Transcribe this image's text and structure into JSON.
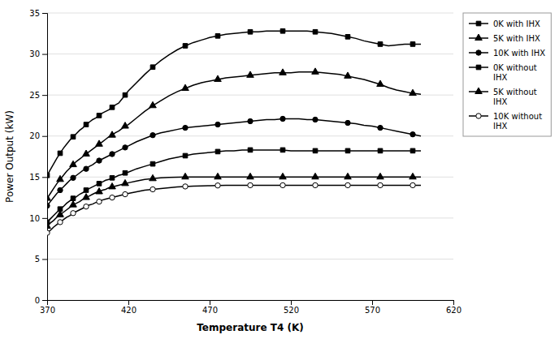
{
  "chart_data": {
    "type": "line",
    "xlabel": "Temperature T4 (K)",
    "ylabel": "Power Output (kW)",
    "xlim": [
      370,
      620
    ],
    "ylim": [
      0,
      35
    ],
    "xticks": [
      370,
      420,
      470,
      520,
      570,
      620
    ],
    "yticks": [
      0,
      5,
      10,
      15,
      20,
      25,
      30,
      35
    ],
    "grid": "y",
    "legend": "right",
    "x": [
      370,
      372,
      374,
      376,
      378,
      380,
      382,
      384,
      386,
      388,
      390,
      392,
      394,
      396,
      398,
      400,
      402,
      404,
      406,
      408,
      410,
      412,
      414,
      416,
      418,
      420,
      425,
      430,
      435,
      440,
      445,
      450,
      455,
      460,
      465,
      470,
      475,
      480,
      485,
      490,
      495,
      500,
      505,
      510,
      515,
      520,
      525,
      530,
      535,
      540,
      545,
      550,
      555,
      560,
      565,
      570,
      575,
      580,
      585,
      590,
      595,
      600
    ],
    "series": [
      {
        "name": "0K with IHX",
        "marker": "square",
        "color": "#000000",
        "values": [
          15.2,
          15.9,
          16.6,
          17.3,
          17.9,
          18.5,
          19.0,
          19.5,
          19.9,
          20.3,
          20.7,
          21.0,
          21.4,
          21.7,
          22.0,
          22.2,
          22.5,
          22.8,
          23.0,
          23.2,
          23.5,
          23.8,
          24.0,
          24.5,
          25.0,
          25.5,
          26.5,
          27.5,
          28.4,
          29.2,
          29.9,
          30.5,
          31.0,
          31.4,
          31.7,
          32.0,
          32.2,
          32.4,
          32.5,
          32.6,
          32.7,
          32.7,
          32.8,
          32.8,
          32.8,
          32.8,
          32.8,
          32.8,
          32.7,
          32.6,
          32.5,
          32.3,
          32.1,
          31.9,
          31.6,
          31.4,
          31.2,
          31.0,
          31.1,
          31.2,
          31.2,
          31.2
        ]
      },
      {
        "name": "5K with IHX",
        "marker": "triangle",
        "color": "#000000",
        "values": [
          12.4,
          13.0,
          13.6,
          14.2,
          14.7,
          15.2,
          15.7,
          16.1,
          16.5,
          16.9,
          17.2,
          17.5,
          17.8,
          18.1,
          18.4,
          18.7,
          19.0,
          19.3,
          19.6,
          19.9,
          20.1,
          20.4,
          20.6,
          20.9,
          21.2,
          21.4,
          22.2,
          23.0,
          23.7,
          24.3,
          24.9,
          25.4,
          25.8,
          26.2,
          26.5,
          26.7,
          26.9,
          27.1,
          27.2,
          27.3,
          27.4,
          27.5,
          27.6,
          27.7,
          27.7,
          27.7,
          27.8,
          27.8,
          27.8,
          27.7,
          27.6,
          27.5,
          27.3,
          27.1,
          26.9,
          26.6,
          26.3,
          25.9,
          25.6,
          25.4,
          25.2,
          25.1
        ]
      },
      {
        "name": "10K with IHX",
        "marker": "circle",
        "color": "#000000",
        "values": [
          11.5,
          12.0,
          12.5,
          13.0,
          13.4,
          13.8,
          14.2,
          14.6,
          14.9,
          15.2,
          15.5,
          15.8,
          16.0,
          16.3,
          16.5,
          16.8,
          17.0,
          17.2,
          17.4,
          17.6,
          17.8,
          18.0,
          18.2,
          18.4,
          18.6,
          18.8,
          19.3,
          19.7,
          20.1,
          20.4,
          20.6,
          20.8,
          21.0,
          21.1,
          21.2,
          21.3,
          21.4,
          21.5,
          21.6,
          21.7,
          21.8,
          21.9,
          22.0,
          22.0,
          22.1,
          22.1,
          22.1,
          22.0,
          22.0,
          21.9,
          21.8,
          21.7,
          21.6,
          21.5,
          21.3,
          21.2,
          21.0,
          20.8,
          20.6,
          20.4,
          20.2,
          20.0
        ]
      },
      {
        "name": "0K without\nIHX",
        "marker": "square",
        "color": "#000000",
        "values": [
          9.5,
          9.9,
          10.3,
          10.7,
          11.1,
          11.4,
          11.8,
          12.1,
          12.4,
          12.6,
          12.9,
          13.1,
          13.4,
          13.6,
          13.8,
          14.0,
          14.2,
          14.4,
          14.6,
          14.7,
          14.9,
          15.0,
          15.2,
          15.3,
          15.5,
          15.6,
          16.0,
          16.3,
          16.6,
          16.9,
          17.2,
          17.4,
          17.6,
          17.8,
          17.9,
          18.0,
          18.1,
          18.2,
          18.2,
          18.3,
          18.3,
          18.3,
          18.3,
          18.3,
          18.3,
          18.2,
          18.2,
          18.2,
          18.2,
          18.2,
          18.2,
          18.2,
          18.2,
          18.2,
          18.2,
          18.2,
          18.2,
          18.2,
          18.2,
          18.2,
          18.2,
          18.2
        ]
      },
      {
        "name": "5K without\nIHX",
        "marker": "triangle",
        "color": "#000000",
        "values": [
          9.0,
          9.4,
          9.7,
          10.1,
          10.4,
          10.7,
          11.0,
          11.3,
          11.6,
          11.8,
          12.0,
          12.3,
          12.5,
          12.7,
          12.9,
          13.1,
          13.2,
          13.4,
          13.5,
          13.7,
          13.8,
          13.9,
          14.0,
          14.1,
          14.2,
          14.3,
          14.5,
          14.7,
          14.8,
          14.9,
          14.95,
          14.99,
          15.0,
          15.0,
          15.0,
          15.0,
          15.0,
          15.0,
          15.0,
          15.0,
          15.0,
          15.0,
          15.0,
          15.0,
          15.0,
          15.0,
          15.0,
          15.0,
          15.0,
          15.0,
          15.0,
          15.0,
          15.0,
          15.0,
          15.0,
          15.0,
          15.0,
          15.0,
          15.0,
          15.0,
          15.0,
          15.0
        ]
      },
      {
        "name": "10K without\nIHX",
        "marker": "circle-open",
        "color": "#000000",
        "values": [
          8.2,
          8.5,
          8.9,
          9.2,
          9.5,
          9.8,
          10.1,
          10.3,
          10.6,
          10.8,
          11.0,
          11.2,
          11.4,
          11.6,
          11.7,
          11.9,
          12.0,
          12.2,
          12.3,
          12.4,
          12.5,
          12.6,
          12.7,
          12.8,
          12.9,
          13.0,
          13.2,
          13.4,
          13.5,
          13.6,
          13.7,
          13.8,
          13.85,
          13.9,
          13.92,
          13.95,
          13.97,
          13.98,
          13.99,
          14.0,
          14.0,
          14.0,
          14.0,
          14.0,
          14.0,
          14.0,
          14.0,
          14.0,
          14.0,
          14.0,
          14.0,
          14.0,
          14.0,
          14.0,
          14.0,
          14.0,
          14.0,
          14.0,
          14.0,
          14.0,
          14.0,
          14.0
        ]
      }
    ]
  }
}
